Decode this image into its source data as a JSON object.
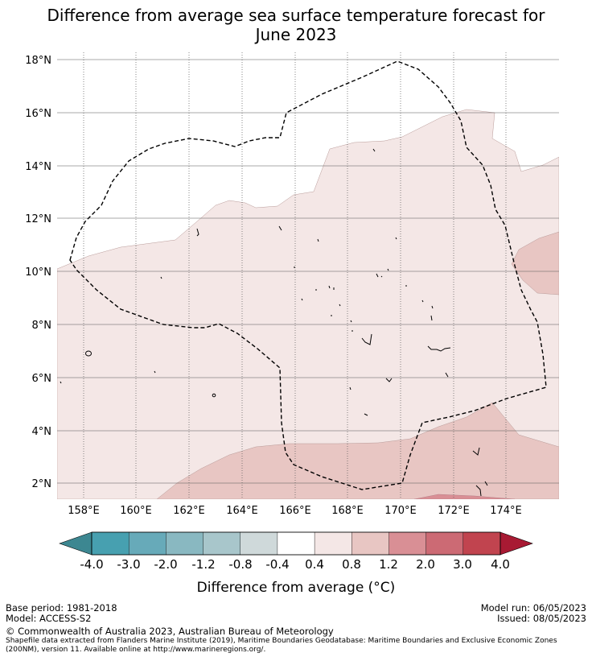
{
  "title": {
    "line1": "Difference from average sea surface temperature forecast for",
    "line2": "June 2023"
  },
  "map": {
    "lat_labels": [
      "18°N",
      "16°N",
      "14°N",
      "12°N",
      "10°N",
      "8°N",
      "6°N",
      "4°N",
      "2°N"
    ],
    "lon_labels": [
      "158°E",
      "160°E",
      "162°E",
      "164°E",
      "166°E",
      "168°E",
      "170°E",
      "172°E",
      "174°E"
    ]
  },
  "colorbar": {
    "tick_labels": [
      "-4.0",
      "-3.0",
      "-2.0",
      "-1.2",
      "-0.8",
      "-0.4",
      "0.4",
      "0.8",
      "1.2",
      "2.0",
      "3.0",
      "4.0"
    ],
    "colors": [
      "#47a0b0",
      "#67aab9",
      "#89b8c1",
      "#a8c6cb",
      "#cfd9da",
      "#ffffff",
      "#f4e7e6",
      "#e8c6c3",
      "#d98f95",
      "#cc6a74",
      "#c1444f"
    ],
    "under_color": "#3c8791",
    "over_color": "#a81a33",
    "label": "Difference from average (°C)"
  },
  "footer": {
    "base_period": "Base period: 1981-2018",
    "model": "Model: ACCESS-S2",
    "model_run": "Model run: 06/05/2023",
    "issued": "Issued: 08/05/2023",
    "copyright": "© Commonwealth of Australia 2023, Australian Bureau of Meteorology",
    "source_line1": "Shapefile data extracted from Flanders Marine Institute (2019), Maritime Boundaries Geodatabase: Maritime Boundaries and Exclusive Economic Zones",
    "source_line2": "(200NM), version 11. Available online at http://www.marineregions.org/."
  }
}
